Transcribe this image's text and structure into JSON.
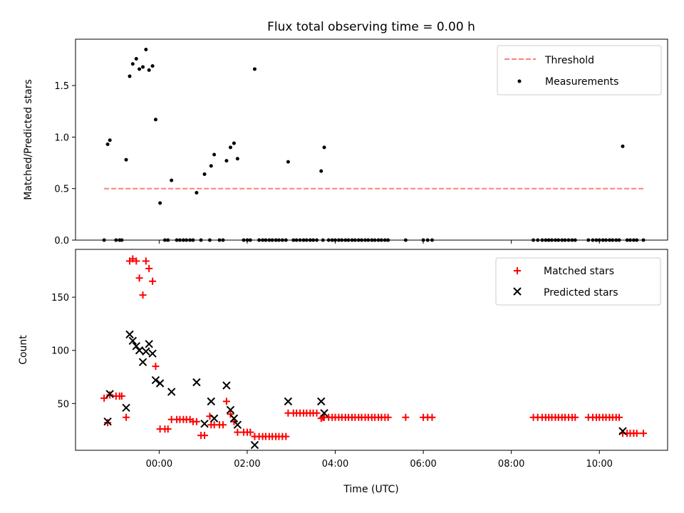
{
  "chart_data": [
    {
      "type": "scatter",
      "title": "Flux total observing time = 0.00 h",
      "ylabel": "Matched/Predicted stars",
      "xlabel": "",
      "xlim": [
        -1.9,
        11.55
      ],
      "ylim": [
        0,
        1.95
      ],
      "yticks": [
        0.0,
        0.5,
        1.0,
        1.5
      ],
      "ytick_labels": [
        "0.0",
        "0.5",
        "1.0",
        "1.5"
      ],
      "xticks": [
        0,
        2,
        4,
        6,
        8,
        10
      ],
      "legend_position": "top-right",
      "threshold": {
        "name": "Threshold",
        "value": 0.5,
        "x_range": [
          -1.25,
          11.0
        ],
        "color": "#ff7f7f",
        "style": "dashed"
      },
      "series": [
        {
          "name": "Measurements",
          "marker": "dot",
          "color": "#000000",
          "points": [
            [
              -1.25,
              0.0
            ],
            [
              -1.17,
              0.93
            ],
            [
              -1.12,
              0.97
            ],
            [
              -0.98,
              0.0
            ],
            [
              -0.9,
              0.0
            ],
            [
              -0.85,
              0.0
            ],
            [
              -0.75,
              0.78
            ],
            [
              -0.67,
              1.59
            ],
            [
              -0.6,
              1.71
            ],
            [
              -0.52,
              1.76
            ],
            [
              -0.45,
              1.66
            ],
            [
              -0.37,
              1.68
            ],
            [
              -0.3,
              1.85
            ],
            [
              -0.23,
              1.65
            ],
            [
              -0.15,
              1.69
            ],
            [
              -0.08,
              1.17
            ],
            [
              0.02,
              0.36
            ],
            [
              0.13,
              0.0
            ],
            [
              0.2,
              0.0
            ],
            [
              0.28,
              0.58
            ],
            [
              0.4,
              0.0
            ],
            [
              0.47,
              0.0
            ],
            [
              0.55,
              0.0
            ],
            [
              0.62,
              0.0
            ],
            [
              0.7,
              0.0
            ],
            [
              0.77,
              0.0
            ],
            [
              0.85,
              0.46
            ],
            [
              0.95,
              0.0
            ],
            [
              1.03,
              0.64
            ],
            [
              1.15,
              0.0
            ],
            [
              1.18,
              0.72
            ],
            [
              1.25,
              0.83
            ],
            [
              1.37,
              0.0
            ],
            [
              1.45,
              0.0
            ],
            [
              1.53,
              0.77
            ],
            [
              1.62,
              0.9
            ],
            [
              1.7,
              0.94
            ],
            [
              1.78,
              0.79
            ],
            [
              1.92,
              0.0
            ],
            [
              2.0,
              0.0
            ],
            [
              2.07,
              0.0
            ],
            [
              2.17,
              1.66
            ],
            [
              2.27,
              0.0
            ],
            [
              2.35,
              0.0
            ],
            [
              2.42,
              0.0
            ],
            [
              2.5,
              0.0
            ],
            [
              2.57,
              0.0
            ],
            [
              2.65,
              0.0
            ],
            [
              2.72,
              0.0
            ],
            [
              2.8,
              0.0
            ],
            [
              2.88,
              0.0
            ],
            [
              2.93,
              0.76
            ],
            [
              3.05,
              0.0
            ],
            [
              3.12,
              0.0
            ],
            [
              3.2,
              0.0
            ],
            [
              3.28,
              0.0
            ],
            [
              3.35,
              0.0
            ],
            [
              3.43,
              0.0
            ],
            [
              3.5,
              0.0
            ],
            [
              3.58,
              0.0
            ],
            [
              3.68,
              0.67
            ],
            [
              3.72,
              0.0
            ],
            [
              3.75,
              0.9
            ],
            [
              3.85,
              0.0
            ],
            [
              3.93,
              0.0
            ],
            [
              4.0,
              0.0
            ],
            [
              4.08,
              0.0
            ],
            [
              4.15,
              0.0
            ],
            [
              4.23,
              0.0
            ],
            [
              4.3,
              0.0
            ],
            [
              4.38,
              0.0
            ],
            [
              4.45,
              0.0
            ],
            [
              4.53,
              0.0
            ],
            [
              4.6,
              0.0
            ],
            [
              4.68,
              0.0
            ],
            [
              4.75,
              0.0
            ],
            [
              4.83,
              0.0
            ],
            [
              4.9,
              0.0
            ],
            [
              4.98,
              0.0
            ],
            [
              5.05,
              0.0
            ],
            [
              5.13,
              0.0
            ],
            [
              5.2,
              0.0
            ],
            [
              5.6,
              0.0
            ],
            [
              6.0,
              0.0
            ],
            [
              6.1,
              0.0
            ],
            [
              6.2,
              0.0
            ],
            [
              8.5,
              0.0
            ],
            [
              8.6,
              0.0
            ],
            [
              8.7,
              0.0
            ],
            [
              8.78,
              0.0
            ],
            [
              8.85,
              0.0
            ],
            [
              8.92,
              0.0
            ],
            [
              9.0,
              0.0
            ],
            [
              9.07,
              0.0
            ],
            [
              9.15,
              0.0
            ],
            [
              9.22,
              0.0
            ],
            [
              9.3,
              0.0
            ],
            [
              9.38,
              0.0
            ],
            [
              9.45,
              0.0
            ],
            [
              9.75,
              0.0
            ],
            [
              9.85,
              0.0
            ],
            [
              9.93,
              0.0
            ],
            [
              10.0,
              0.0
            ],
            [
              10.08,
              0.0
            ],
            [
              10.15,
              0.0
            ],
            [
              10.23,
              0.0
            ],
            [
              10.3,
              0.0
            ],
            [
              10.38,
              0.0
            ],
            [
              10.45,
              0.0
            ],
            [
              10.53,
              0.91
            ],
            [
              10.63,
              0.0
            ],
            [
              10.7,
              0.0
            ],
            [
              10.78,
              0.0
            ],
            [
              10.85,
              0.0
            ],
            [
              11.0,
              0.0
            ]
          ]
        }
      ]
    },
    {
      "type": "scatter",
      "title": "",
      "ylabel": "Count",
      "xlabel": "Time (UTC)",
      "xlim": [
        -1.9,
        11.55
      ],
      "ylim": [
        6,
        195
      ],
      "yticks": [
        50,
        100,
        150
      ],
      "ytick_labels": [
        "50",
        "100",
        "150"
      ],
      "xticks": [
        0,
        2,
        4,
        6,
        8,
        10
      ],
      "xtick_labels": [
        "00:00",
        "02:00",
        "04:00",
        "06:00",
        "08:00",
        "10:00"
      ],
      "legend_position": "top-right",
      "series": [
        {
          "name": "Matched stars",
          "marker": "plus",
          "color": "#ff0000",
          "points": [
            [
              -1.25,
              55
            ],
            [
              -1.17,
              32
            ],
            [
              -1.12,
              58
            ],
            [
              -0.98,
              57
            ],
            [
              -0.9,
              57
            ],
            [
              -0.85,
              57
            ],
            [
              -0.75,
              37
            ],
            [
              -0.67,
              184
            ],
            [
              -0.6,
              186
            ],
            [
              -0.52,
              184
            ],
            [
              -0.45,
              168
            ],
            [
              -0.37,
              152
            ],
            [
              -0.3,
              184
            ],
            [
              -0.23,
              177
            ],
            [
              -0.15,
              165
            ],
            [
              -0.08,
              85
            ],
            [
              0.02,
              26
            ],
            [
              0.13,
              26
            ],
            [
              0.2,
              26
            ],
            [
              0.28,
              35
            ],
            [
              0.4,
              35
            ],
            [
              0.47,
              35
            ],
            [
              0.55,
              35
            ],
            [
              0.62,
              35
            ],
            [
              0.7,
              35
            ],
            [
              0.77,
              33
            ],
            [
              0.85,
              33
            ],
            [
              0.95,
              20
            ],
            [
              1.03,
              20
            ],
            [
              1.15,
              38
            ],
            [
              1.18,
              30
            ],
            [
              1.25,
              30
            ],
            [
              1.37,
              30
            ],
            [
              1.45,
              30
            ],
            [
              1.53,
              52
            ],
            [
              1.62,
              40
            ],
            [
              1.7,
              33
            ],
            [
              1.78,
              23
            ],
            [
              1.92,
              23
            ],
            [
              2.0,
              23
            ],
            [
              2.07,
              23
            ],
            [
              2.17,
              19
            ],
            [
              2.27,
              19
            ],
            [
              2.35,
              19
            ],
            [
              2.42,
              19
            ],
            [
              2.5,
              19
            ],
            [
              2.57,
              19
            ],
            [
              2.65,
              19
            ],
            [
              2.72,
              19
            ],
            [
              2.8,
              19
            ],
            [
              2.88,
              19
            ],
            [
              2.93,
              41
            ],
            [
              3.05,
              41
            ],
            [
              3.12,
              41
            ],
            [
              3.2,
              41
            ],
            [
              3.28,
              41
            ],
            [
              3.35,
              41
            ],
            [
              3.43,
              41
            ],
            [
              3.5,
              41
            ],
            [
              3.58,
              41
            ],
            [
              3.68,
              36
            ],
            [
              3.72,
              37
            ],
            [
              3.75,
              37
            ],
            [
              3.85,
              37
            ],
            [
              3.93,
              37
            ],
            [
              4.0,
              37
            ],
            [
              4.08,
              37
            ],
            [
              4.15,
              37
            ],
            [
              4.23,
              37
            ],
            [
              4.3,
              37
            ],
            [
              4.38,
              37
            ],
            [
              4.45,
              37
            ],
            [
              4.53,
              37
            ],
            [
              4.6,
              37
            ],
            [
              4.68,
              37
            ],
            [
              4.75,
              37
            ],
            [
              4.83,
              37
            ],
            [
              4.9,
              37
            ],
            [
              4.98,
              37
            ],
            [
              5.05,
              37
            ],
            [
              5.13,
              37
            ],
            [
              5.2,
              37
            ],
            [
              5.6,
              37
            ],
            [
              6.0,
              37
            ],
            [
              6.1,
              37
            ],
            [
              6.2,
              37
            ],
            [
              8.5,
              37
            ],
            [
              8.6,
              37
            ],
            [
              8.7,
              37
            ],
            [
              8.78,
              37
            ],
            [
              8.85,
              37
            ],
            [
              8.92,
              37
            ],
            [
              9.0,
              37
            ],
            [
              9.07,
              37
            ],
            [
              9.15,
              37
            ],
            [
              9.22,
              37
            ],
            [
              9.3,
              37
            ],
            [
              9.38,
              37
            ],
            [
              9.45,
              37
            ],
            [
              9.75,
              37
            ],
            [
              9.85,
              37
            ],
            [
              9.93,
              37
            ],
            [
              10.0,
              37
            ],
            [
              10.08,
              37
            ],
            [
              10.15,
              37
            ],
            [
              10.23,
              37
            ],
            [
              10.3,
              37
            ],
            [
              10.38,
              37
            ],
            [
              10.45,
              37
            ],
            [
              10.53,
              22
            ],
            [
              10.63,
              22
            ],
            [
              10.7,
              22
            ],
            [
              10.78,
              22
            ],
            [
              10.85,
              22
            ],
            [
              11.0,
              22
            ]
          ]
        },
        {
          "name": "Predicted stars",
          "marker": "x",
          "color": "#000000",
          "points": [
            [
              -1.17,
              33
            ],
            [
              -1.12,
              59
            ],
            [
              -0.75,
              46
            ],
            [
              -0.67,
              115
            ],
            [
              -0.6,
              109
            ],
            [
              -0.52,
              104
            ],
            [
              -0.45,
              100
            ],
            [
              -0.37,
              89
            ],
            [
              -0.3,
              99
            ],
            [
              -0.23,
              106
            ],
            [
              -0.15,
              97
            ],
            [
              -0.08,
              72
            ],
            [
              0.02,
              69
            ],
            [
              0.28,
              61
            ],
            [
              0.85,
              70
            ],
            [
              1.03,
              31
            ],
            [
              1.18,
              52
            ],
            [
              1.25,
              36
            ],
            [
              1.53,
              67
            ],
            [
              1.62,
              44
            ],
            [
              1.7,
              36
            ],
            [
              1.78,
              30
            ],
            [
              2.17,
              11
            ],
            [
              2.93,
              52
            ],
            [
              3.68,
              52
            ],
            [
              3.75,
              41
            ],
            [
              10.53,
              24
            ]
          ]
        }
      ]
    }
  ]
}
